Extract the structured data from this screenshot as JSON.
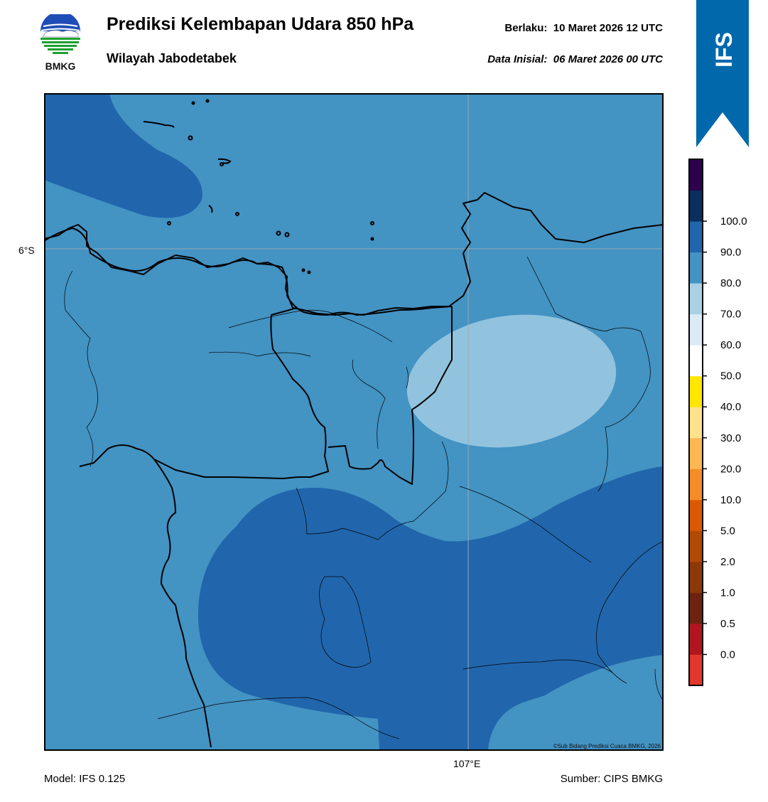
{
  "header": {
    "logo_text": "BMKG",
    "title": "Prediksi Kelembapan Udara 850 hPa",
    "subtitle": "Wilayah Jabodetabek",
    "valid_label": "Berlaku:",
    "valid_value": "10 Maret 2026 12 UTC",
    "init_label": "Data Inisial:",
    "init_value": "06 Maret 2026 00 UTC"
  },
  "ribbon": {
    "text": "IFS",
    "color": "#0068ab"
  },
  "map": {
    "lat_label": "6°S",
    "lon_label": "107°E",
    "copyright": "©Sub Bidang Prediksi Cuaca BMKG, 2026",
    "colors": {
      "light": "#92c3de",
      "mid": "#4393c3",
      "dark": "#2166ac"
    }
  },
  "legend": {
    "ticks": [
      "0.0",
      "0.5",
      "1.0",
      "2.0",
      "5.0",
      "10.0",
      "20.0",
      "30.0",
      "40.0",
      "50.0",
      "60.0",
      "70.0",
      "80.0",
      "90.0",
      "100.0"
    ],
    "colors": [
      "#e2372c",
      "#b2151d",
      "#6e2310",
      "#8c3808",
      "#b14a05",
      "#dc5904",
      "#f58c27",
      "#fdb752",
      "#ffe28c",
      "#ffe600",
      "#ffffff",
      "#dbeaf5",
      "#a9d1e5",
      "#4393c3",
      "#2166ac",
      "#0b2e5e",
      "#2d004b"
    ]
  },
  "footer": {
    "model": "Model: IFS 0.125",
    "source": "Sumber: CIPS BMKG"
  }
}
